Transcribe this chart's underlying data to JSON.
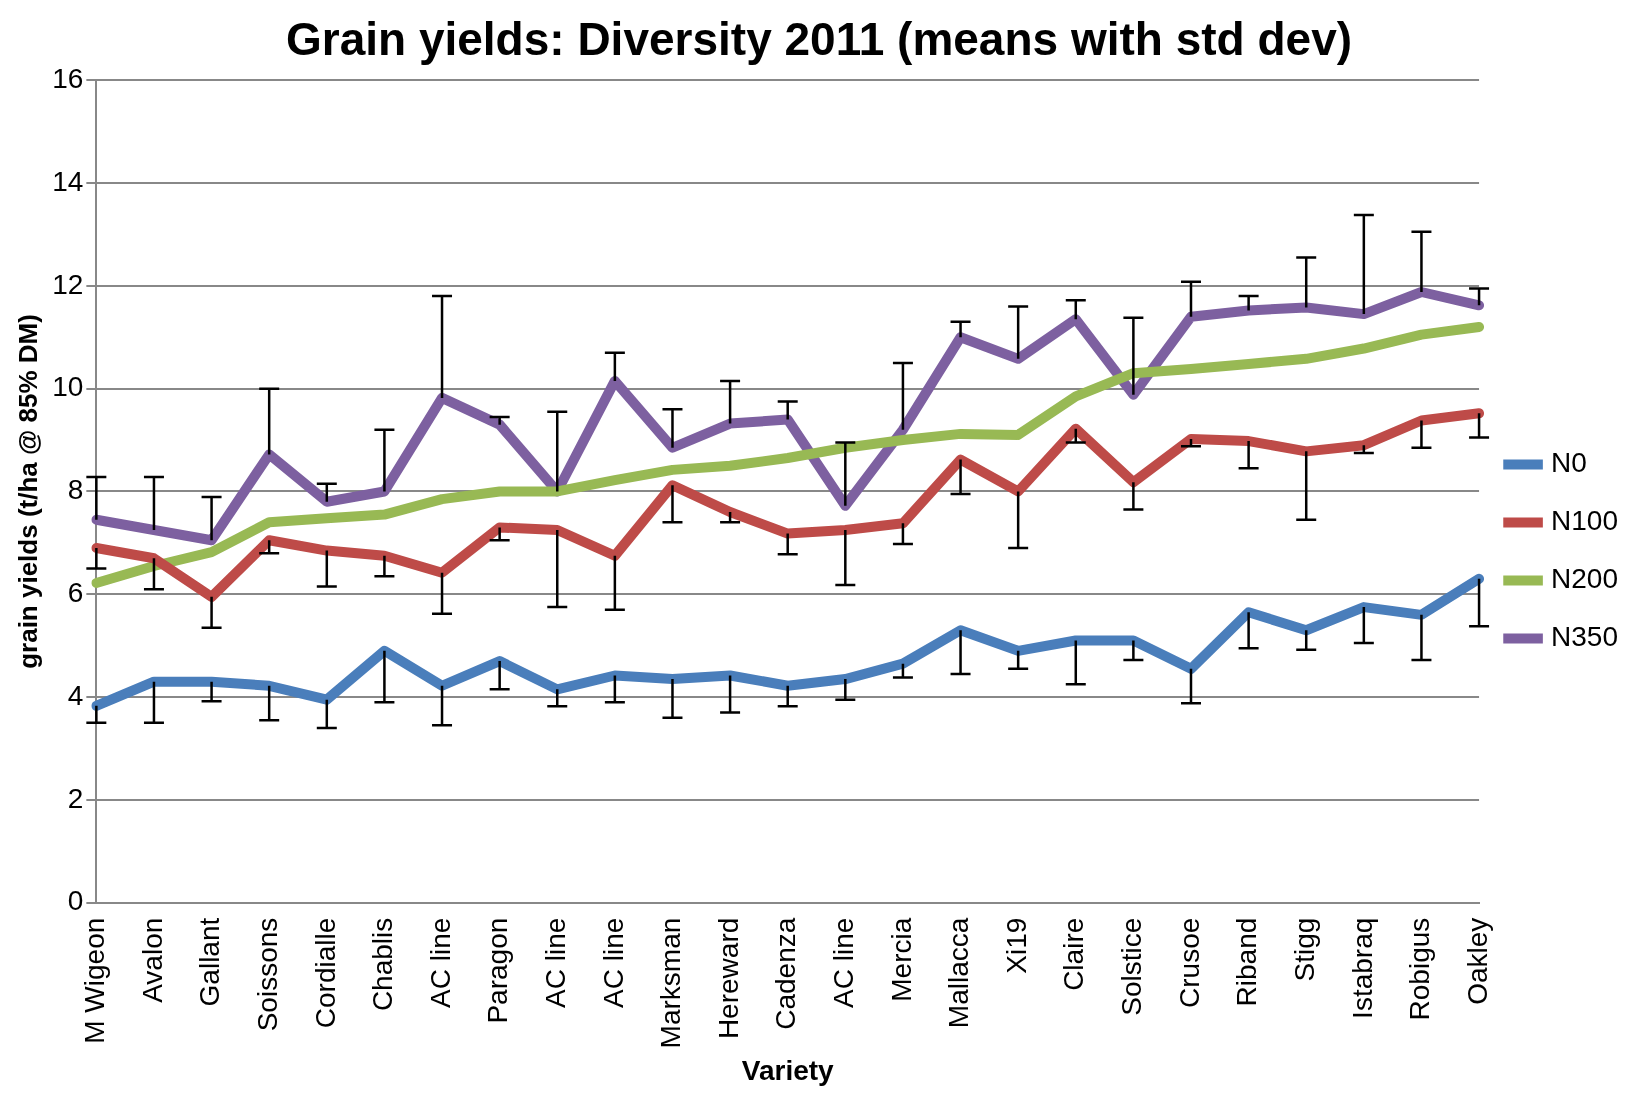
{
  "chart_data": {
    "type": "line",
    "title": "Grain yields: Diversity 2011 (means with std dev)",
    "xlabel": "Variety",
    "ylabel": "grain yields (t/ha @ 85% DM)",
    "categories": [
      "M Wigeon",
      "Avalon",
      "Gallant",
      "Soissons",
      "Cordialle",
      "Chablis",
      "AC line",
      "Paragon",
      "AC line",
      "AC line",
      "Marksman",
      "Hereward",
      "Cadenza",
      "AC line",
      "Mercia",
      "Mallacca",
      "Xi19",
      "Claire",
      "Solstice",
      "Crusoe",
      "Riband",
      "Stigg",
      "Istabraq",
      "Robigus",
      "Oakley"
    ],
    "series": [
      {
        "name": "N0",
        "color": "#4a7ebb",
        "values": [
          3.83,
          4.3,
          4.3,
          4.22,
          3.95,
          4.9,
          4.22,
          4.7,
          4.15,
          4.42,
          4.35,
          4.42,
          4.22,
          4.35,
          4.65,
          5.3,
          4.9,
          5.1,
          5.1,
          4.55,
          5.65,
          5.3,
          5.75,
          5.6,
          6.3
        ],
        "errors": [
          [
            3.5,
            3.83
          ],
          [
            3.5,
            4.3
          ],
          [
            3.92,
            4.3
          ],
          [
            3.55,
            4.22
          ],
          [
            3.4,
            3.95
          ],
          [
            3.9,
            4.9
          ],
          [
            3.45,
            4.22
          ],
          [
            4.15,
            4.7
          ],
          [
            3.82,
            4.15
          ],
          [
            3.9,
            4.42
          ],
          [
            3.6,
            4.35
          ],
          [
            3.7,
            4.42
          ],
          [
            3.82,
            4.22
          ],
          [
            3.95,
            4.35
          ],
          [
            4.38,
            4.65
          ],
          [
            4.45,
            5.3
          ],
          [
            4.55,
            4.9
          ],
          [
            4.25,
            5.1
          ],
          [
            4.72,
            5.1
          ],
          [
            3.88,
            4.55
          ],
          [
            4.95,
            5.65
          ],
          [
            4.92,
            5.3
          ],
          [
            5.05,
            5.75
          ],
          [
            4.72,
            5.6
          ],
          [
            5.38,
            6.3
          ]
        ]
      },
      {
        "name": "N100",
        "color": "#be4b48",
        "values": [
          6.9,
          6.7,
          5.95,
          7.05,
          6.85,
          6.75,
          6.42,
          7.3,
          7.25,
          6.75,
          8.12,
          7.6,
          7.18,
          7.25,
          7.38,
          8.62,
          8.0,
          9.22,
          8.18,
          9.02,
          8.98,
          8.78,
          8.9,
          9.38,
          9.52
        ],
        "errors": [
          [
            6.5,
            6.9
          ],
          [
            6.1,
            6.7
          ],
          [
            5.35,
            5.95
          ],
          [
            6.8,
            7.05
          ],
          [
            6.15,
            6.85
          ],
          [
            6.35,
            6.75
          ],
          [
            5.62,
            6.42
          ],
          [
            7.05,
            7.3
          ],
          [
            5.75,
            7.25
          ],
          [
            5.7,
            6.75
          ],
          [
            7.4,
            8.12
          ],
          [
            7.4,
            7.6
          ],
          [
            6.78,
            7.18
          ],
          [
            6.18,
            7.25
          ],
          [
            6.98,
            7.38
          ],
          [
            7.95,
            8.62
          ],
          [
            6.9,
            8.0
          ],
          [
            8.95,
            9.22
          ],
          [
            7.65,
            8.18
          ],
          [
            8.88,
            9.02
          ],
          [
            8.45,
            8.98
          ],
          [
            7.45,
            8.78
          ],
          [
            8.75,
            8.9
          ],
          [
            8.85,
            9.38
          ],
          [
            9.05,
            9.52
          ]
        ]
      },
      {
        "name": "N200",
        "color": "#98b954",
        "values": [
          6.22,
          6.55,
          6.82,
          7.4,
          7.48,
          7.55,
          7.85,
          8.0,
          8.0,
          8.22,
          8.42,
          8.5,
          8.65,
          8.85,
          9.0,
          9.12,
          9.1,
          9.85,
          10.3,
          10.38,
          10.48,
          10.58,
          10.78,
          11.05,
          11.2
        ]
      },
      {
        "name": "N350",
        "color": "#7d60a0",
        "values": [
          7.45,
          7.25,
          7.05,
          8.72,
          7.8,
          8.0,
          9.82,
          9.3,
          8.0,
          10.15,
          8.85,
          9.32,
          9.4,
          7.72,
          9.2,
          11.0,
          10.58,
          11.35,
          9.88,
          11.4,
          11.52,
          11.58,
          11.45,
          11.88,
          11.62
        ],
        "errors": [
          [
            7.45,
            8.28
          ],
          [
            7.25,
            8.28
          ],
          [
            7.05,
            7.89
          ],
          [
            8.72,
            10.0
          ],
          [
            7.8,
            8.15
          ],
          [
            8.0,
            9.2
          ],
          [
            9.82,
            11.8
          ],
          [
            9.3,
            9.45
          ],
          [
            8.0,
            9.55
          ],
          [
            10.15,
            10.7
          ],
          [
            8.85,
            9.6
          ],
          [
            9.32,
            10.15
          ],
          [
            9.4,
            9.75
          ],
          [
            7.72,
            8.95
          ],
          [
            9.2,
            10.5
          ],
          [
            11.0,
            11.3
          ],
          [
            10.58,
            11.6
          ],
          [
            11.35,
            11.72
          ],
          [
            9.88,
            11.38
          ],
          [
            11.4,
            12.08
          ],
          [
            11.52,
            11.8
          ],
          [
            11.58,
            12.55
          ],
          [
            11.45,
            13.38
          ],
          [
            11.88,
            13.05
          ],
          [
            11.62,
            11.95
          ]
        ]
      }
    ],
    "ylim": [
      0,
      16
    ],
    "yticks": [
      0,
      2,
      4,
      6,
      8,
      10,
      12,
      14,
      16
    ],
    "grid": "y",
    "legend": "right",
    "marker": "none",
    "line_style": "solid"
  }
}
